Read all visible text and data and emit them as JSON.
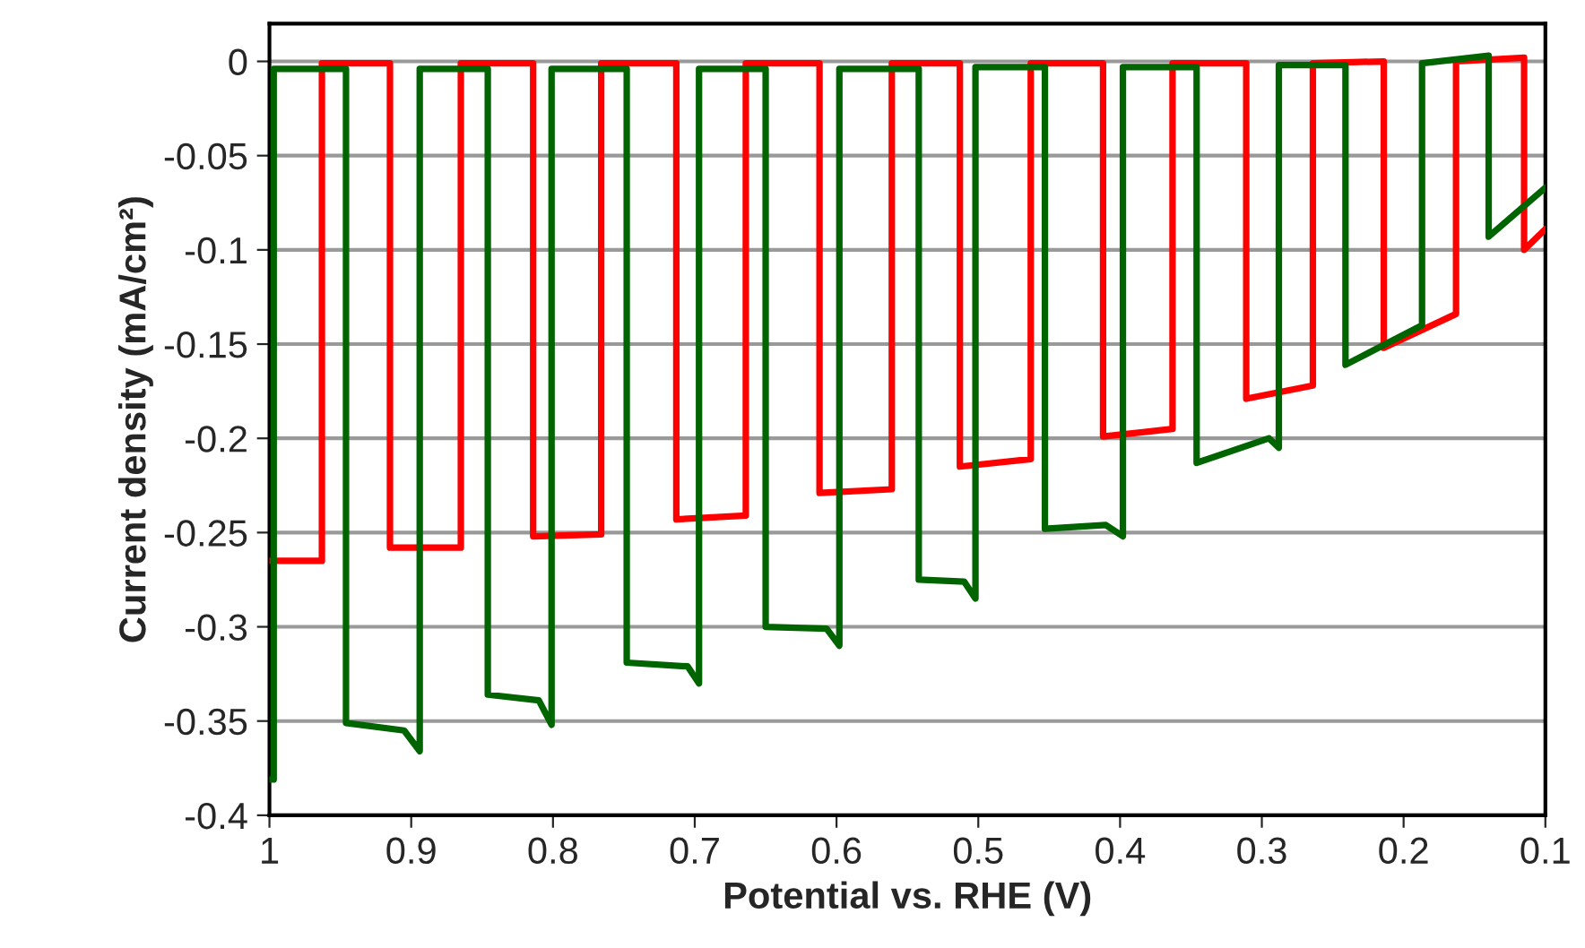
{
  "chart_data": {
    "type": "line",
    "xlabel": "Potential vs. RHE (V)",
    "ylabel": "Current density (mA/cm²)",
    "xlim": [
      1,
      0.1
    ],
    "xticks": [
      1,
      0.9,
      0.8,
      0.7,
      0.6,
      0.5,
      0.4,
      0.3,
      0.2,
      0.1
    ],
    "ylim": [
      -0.4,
      0.02
    ],
    "yticks": [
      0,
      -0.05,
      -0.1,
      -0.15,
      -0.2,
      -0.25,
      -0.3,
      -0.35,
      -0.4
    ],
    "grid": "y",
    "legend": false,
    "line_style": "solid",
    "marker": "none",
    "series": [
      {
        "color": "#ff0000",
        "x": [
          1.0,
          0.963,
          0.963,
          0.915,
          0.915,
          0.865,
          0.865,
          0.814,
          0.814,
          0.766,
          0.766,
          0.713,
          0.713,
          0.664,
          0.664,
          0.612,
          0.612,
          0.561,
          0.561,
          0.513,
          0.513,
          0.463,
          0.463,
          0.412,
          0.412,
          0.363,
          0.363,
          0.311,
          0.311,
          0.264,
          0.264,
          0.214,
          0.214,
          0.163,
          0.163,
          0.115,
          0.115,
          0.1
        ],
        "values": [
          -0.265,
          -0.265,
          -0.001,
          -0.001,
          -0.258,
          -0.258,
          -0.001,
          -0.001,
          -0.252,
          -0.251,
          -0.001,
          -0.001,
          -0.243,
          -0.241,
          -0.001,
          -0.001,
          -0.229,
          -0.227,
          -0.001,
          -0.001,
          -0.215,
          -0.211,
          -0.001,
          -0.001,
          -0.199,
          -0.195,
          -0.001,
          -0.001,
          -0.179,
          -0.172,
          -0.001,
          0.0,
          -0.152,
          -0.134,
          0.0,
          0.002,
          -0.1,
          -0.089
        ]
      },
      {
        "color": "#006400",
        "x": [
          1.0,
          0.997,
          0.997,
          0.946,
          0.946,
          0.905,
          0.894,
          0.894,
          0.846,
          0.846,
          0.81,
          0.801,
          0.801,
          0.748,
          0.748,
          0.705,
          0.697,
          0.697,
          0.65,
          0.65,
          0.607,
          0.598,
          0.598,
          0.542,
          0.542,
          0.51,
          0.502,
          0.502,
          0.453,
          0.453,
          0.41,
          0.398,
          0.398,
          0.346,
          0.346,
          0.295,
          0.288,
          0.288,
          0.241,
          0.241,
          0.187,
          0.187,
          0.14,
          0.14,
          0.1
        ],
        "values": [
          -0.381,
          -0.381,
          -0.004,
          -0.004,
          -0.351,
          -0.355,
          -0.366,
          -0.004,
          -0.004,
          -0.336,
          -0.339,
          -0.352,
          -0.004,
          -0.004,
          -0.319,
          -0.321,
          -0.33,
          -0.004,
          -0.004,
          -0.3,
          -0.301,
          -0.31,
          -0.004,
          -0.004,
          -0.275,
          -0.276,
          -0.285,
          -0.003,
          -0.003,
          -0.248,
          -0.246,
          -0.252,
          -0.003,
          -0.003,
          -0.213,
          -0.2,
          -0.205,
          -0.002,
          -0.002,
          -0.161,
          -0.14,
          -0.001,
          0.003,
          -0.093,
          -0.067
        ]
      }
    ]
  }
}
